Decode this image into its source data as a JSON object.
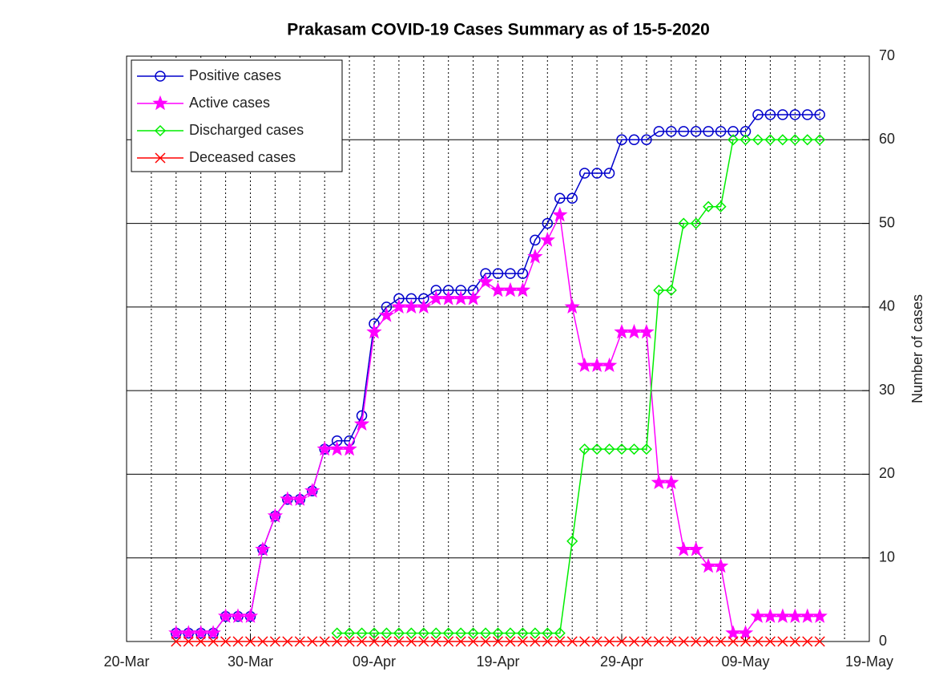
{
  "chart_data": {
    "type": "line",
    "title": "Prakasam COVID-19 Cases Summary as of 15-5-2020",
    "y_label": "Number of cases",
    "x": [
      "24-Mar",
      "25-Mar",
      "26-Mar",
      "27-Mar",
      "28-Mar",
      "29-Mar",
      "30-Mar",
      "31-Mar",
      "01-Apr",
      "02-Apr",
      "03-Apr",
      "04-Apr",
      "05-Apr",
      "06-Apr",
      "07-Apr",
      "08-Apr",
      "09-Apr",
      "10-Apr",
      "11-Apr",
      "12-Apr",
      "13-Apr",
      "14-Apr",
      "15-Apr",
      "16-Apr",
      "17-Apr",
      "18-Apr",
      "19-Apr",
      "20-Apr",
      "21-Apr",
      "22-Apr",
      "23-Apr",
      "24-Apr",
      "25-Apr",
      "26-Apr",
      "27-Apr",
      "28-Apr",
      "29-Apr",
      "30-Apr",
      "01-May",
      "02-May",
      "03-May",
      "04-May",
      "05-May",
      "06-May",
      "07-May",
      "08-May",
      "09-May",
      "10-May",
      "11-May",
      "12-May",
      "13-May",
      "14-May",
      "15-May"
    ],
    "series": [
      {
        "name": "Positive cases",
        "color": "#0000cc",
        "marker": "circle",
        "values": [
          1,
          1,
          1,
          1,
          3,
          3,
          3,
          11,
          15,
          17,
          17,
          18,
          23,
          24,
          24,
          27,
          38,
          40,
          41,
          41,
          41,
          42,
          42,
          42,
          42,
          44,
          44,
          44,
          44,
          48,
          50,
          53,
          53,
          56,
          56,
          56,
          60,
          60,
          60,
          61,
          61,
          61,
          61,
          61,
          61,
          61,
          61,
          63,
          63,
          63,
          63,
          63,
          63
        ]
      },
      {
        "name": "Active cases",
        "color": "#ff00ff",
        "marker": "star",
        "values": [
          1,
          1,
          1,
          1,
          3,
          3,
          3,
          11,
          15,
          17,
          17,
          18,
          23,
          23,
          23,
          26,
          37,
          39,
          40,
          40,
          40,
          41,
          41,
          41,
          41,
          43,
          42,
          42,
          42,
          46,
          48,
          51,
          40,
          33,
          33,
          33,
          37,
          37,
          37,
          19,
          19,
          11,
          11,
          9,
          9,
          1,
          1,
          3,
          3,
          3,
          3,
          3,
          3
        ]
      },
      {
        "name": "Discharged cases",
        "color": "#00ee00",
        "marker": "diamond",
        "values": [
          null,
          null,
          null,
          null,
          null,
          null,
          null,
          null,
          null,
          null,
          null,
          null,
          null,
          1,
          1,
          1,
          1,
          1,
          1,
          1,
          1,
          1,
          1,
          1,
          1,
          1,
          1,
          1,
          1,
          1,
          1,
          1,
          12,
          23,
          23,
          23,
          23,
          23,
          23,
          42,
          42,
          50,
          50,
          52,
          52,
          60,
          60,
          60,
          60,
          60,
          60,
          60,
          60
        ]
      },
      {
        "name": "Deceased cases",
        "color": "#ff0000",
        "marker": "x",
        "values": [
          0,
          0,
          0,
          0,
          0,
          0,
          0,
          0,
          0,
          0,
          0,
          0,
          0,
          0,
          0,
          0,
          0,
          0,
          0,
          0,
          0,
          0,
          0,
          0,
          0,
          0,
          0,
          0,
          0,
          0,
          0,
          0,
          0,
          0,
          0,
          0,
          0,
          0,
          0,
          0,
          0,
          0,
          0,
          0,
          0,
          0,
          0,
          0,
          0,
          0,
          0,
          0,
          0
        ]
      }
    ],
    "xlim": [
      "20-Mar",
      "19-May"
    ],
    "xticks": [
      "20-Mar",
      "30-Mar",
      "09-Apr",
      "19-Apr",
      "29-Apr",
      "09-May",
      "19-May"
    ],
    "ylim": [
      0,
      70
    ],
    "yticks": [
      0,
      10,
      20,
      30,
      40,
      50,
      60,
      70
    ],
    "y_axis_side": "right",
    "grid": true,
    "minor_grid": true,
    "legend": "upper left"
  }
}
